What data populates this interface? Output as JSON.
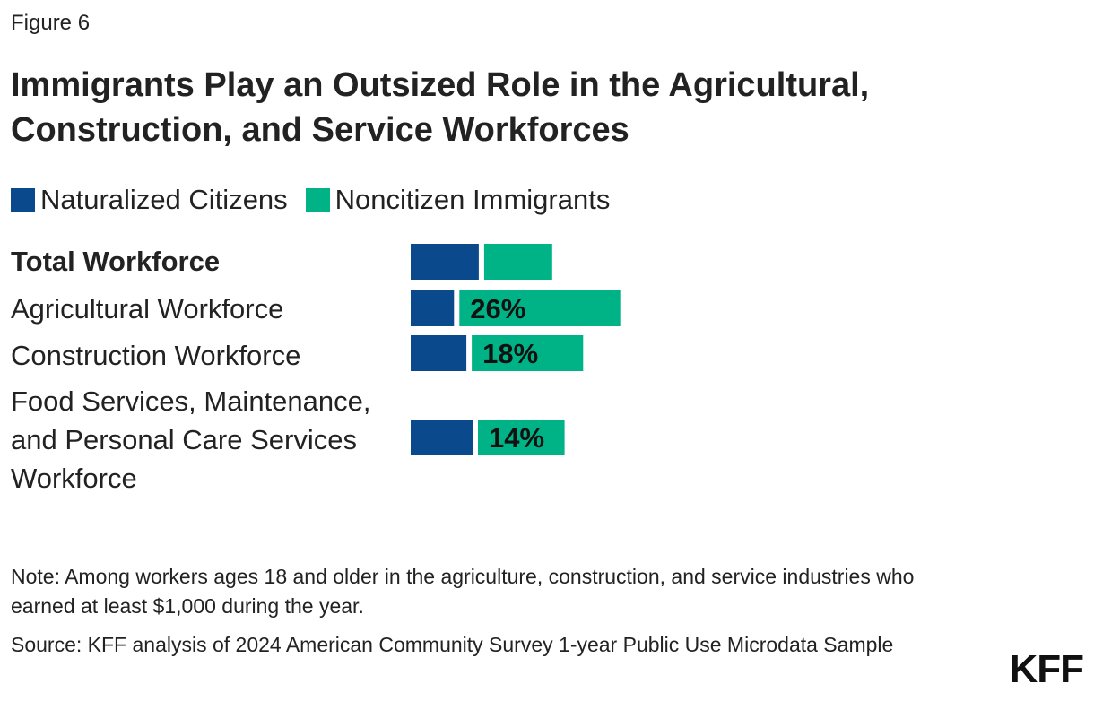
{
  "figure_label": "Figure 6",
  "legend": [
    {
      "label": "Naturalized Citizens",
      "color": "#0a4a8c"
    },
    {
      "label": "Noncitizen Immigrants",
      "color": "#00b386"
    }
  ],
  "note": "Note: Among workers ages 18 and older in the agriculture, construction, and service industries who earned at least $1,000 during the year.",
  "source": "Source: KFF analysis of 2024 American Community Survey 1-year Public Use Microdata Sample",
  "logo": "KFF",
  "chart_data": {
    "type": "bar",
    "orientation": "horizontal",
    "stacked": true,
    "title": "Immigrants Play an Outsized Role in the Agricultural, Construction, and Service Workforces",
    "categories": [
      {
        "label": "Total Workforce",
        "bold": true
      },
      {
        "label": "Agricultural Workforce",
        "bold": false
      },
      {
        "label": "Construction Workforce",
        "bold": false
      },
      {
        "label": "Food Services, Maintenance, and Personal Care Services Workforce",
        "bold": false
      }
    ],
    "series": [
      {
        "name": "Naturalized Citizens",
        "color": "#0a4a8c",
        "values": [
          11,
          7,
          9,
          10
        ],
        "labels": [
          "",
          "",
          "",
          ""
        ]
      },
      {
        "name": "Noncitizen Immigrants",
        "color": "#00b386",
        "values": [
          11,
          26,
          18,
          14
        ],
        "labels": [
          "",
          "26%",
          "18%",
          "14%"
        ]
      }
    ],
    "grid": false,
    "legend_position": "top-left"
  }
}
